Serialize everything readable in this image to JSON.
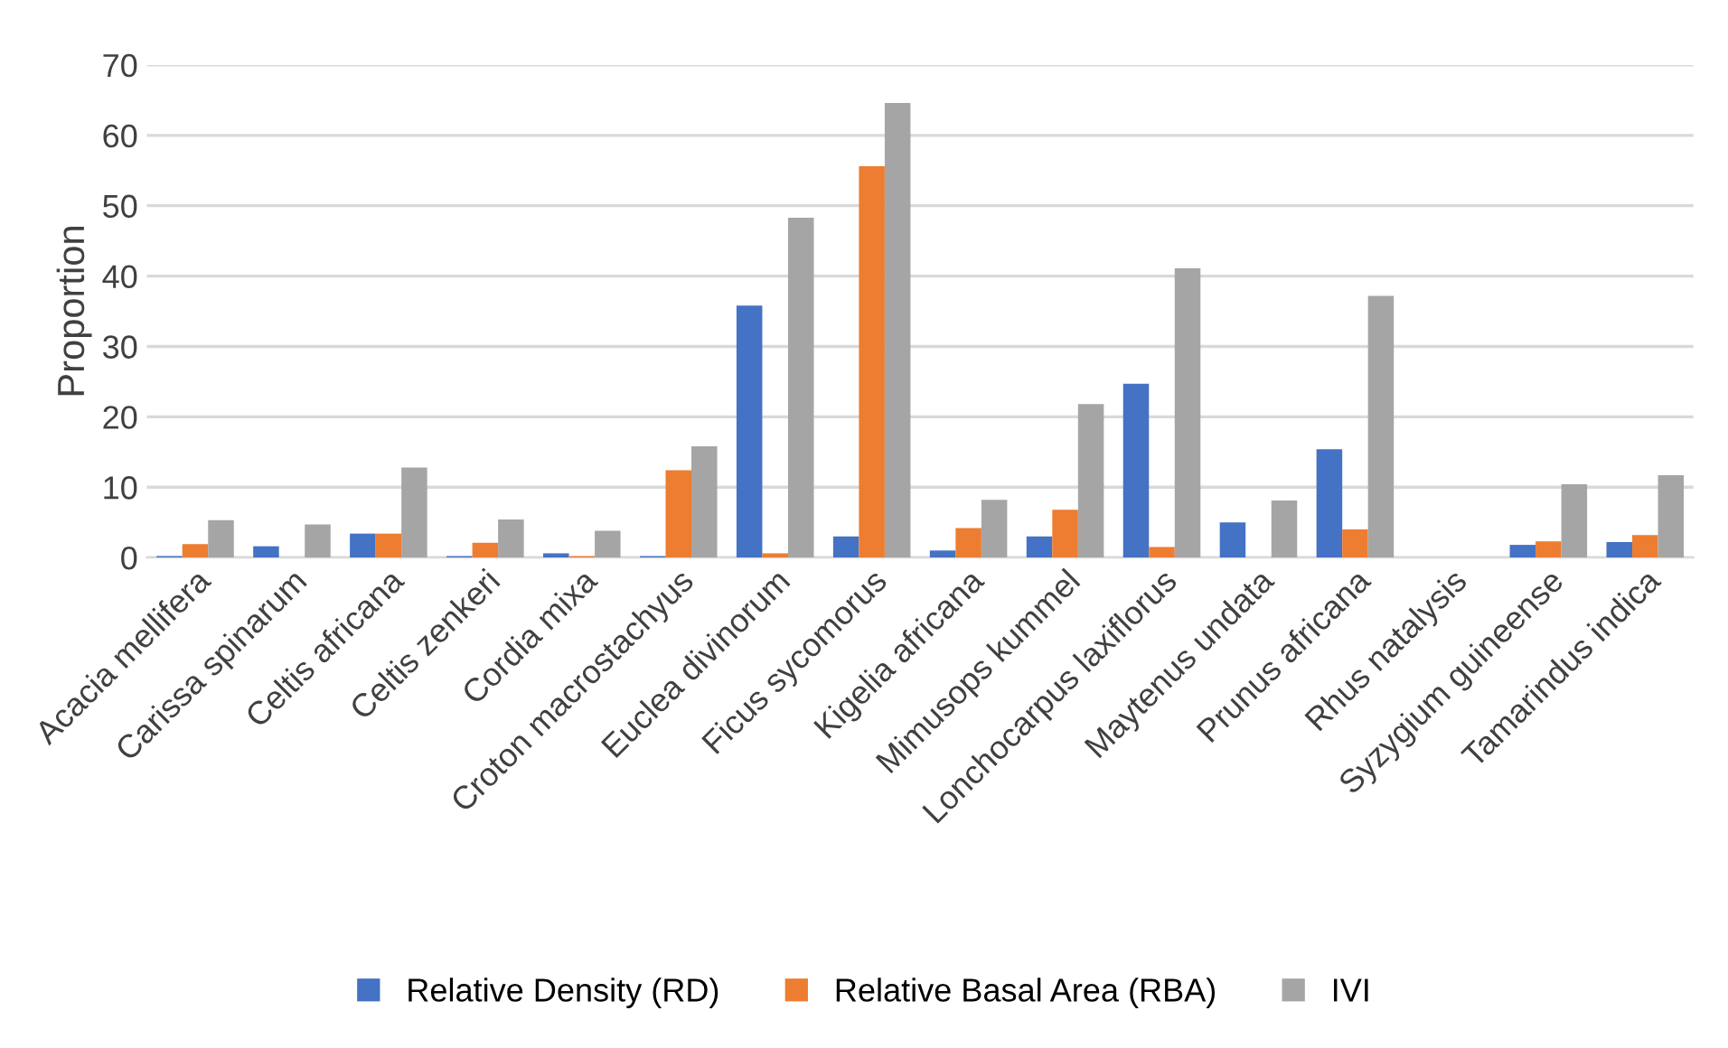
{
  "chart_data": {
    "type": "bar",
    "ylabel": "Proportion",
    "categories": [
      "Acacia mellifera",
      "Carissa spinarum",
      "Celtis africana",
      "Celtis zenkeri",
      "Cordia mixa",
      "Croton macrostachyus",
      "Euclea divinorum",
      "Ficus sycomorus",
      "Kigelia africana",
      "Mimusops kummel",
      "Lonchocarpus laxiflorus",
      "Maytenus undata",
      "Prunus africana",
      "Rhus natalysis",
      "Syzygium guineense",
      "Tamarindus indica"
    ],
    "series": [
      {
        "name": "Relative Density (RD)",
        "color": "#4472c4",
        "values": [
          0.2,
          1.6,
          3.4,
          0.2,
          0.6,
          0.2,
          35.8,
          3.0,
          1.0,
          3.0,
          24.7,
          5.0,
          15.4,
          0,
          1.8,
          2.2
        ]
      },
      {
        "name": "Relative Basal Area (RBA)",
        "color": "#ed7d31",
        "values": [
          1.9,
          0,
          3.4,
          2.1,
          0.2,
          12.4,
          0.6,
          55.6,
          4.2,
          6.8,
          1.5,
          0,
          4.0,
          0,
          2.3,
          3.2
        ]
      },
      {
        "name": "IVI",
        "color": "#a5a5a5",
        "values": [
          5.3,
          4.7,
          12.8,
          5.4,
          3.8,
          15.8,
          48.3,
          64.6,
          8.2,
          21.8,
          41.1,
          8.1,
          37.2,
          0,
          10.4,
          11.7
        ]
      }
    ],
    "ylim": [
      0,
      70
    ],
    "yticks": [
      0,
      10,
      20,
      30,
      40,
      50,
      60,
      70
    ],
    "grid": "y",
    "legend": "bottom"
  }
}
